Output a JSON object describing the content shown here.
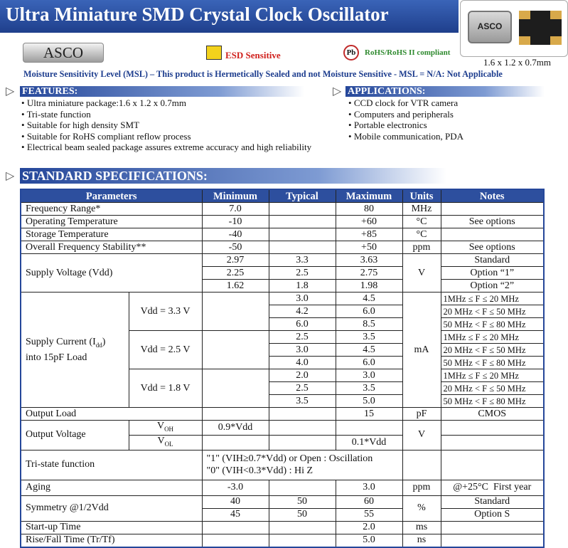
{
  "header": {
    "title": "Ultra Miniature SMD Crystal Clock Oscillator",
    "logo": "ASCO",
    "esd": "ESD Sensitive",
    "pb": "Pb",
    "rohs": "RoHS/RoHS II compliant",
    "chip_label": "ASCO",
    "size": "1.6 x 1.2 x 0.7mm"
  },
  "msl": "Moisture Sensitivity Level (MSL) – This product is Hermetically Sealed and not Moisture Sensitive - MSL = N/A: Not Applicable",
  "features": {
    "title": "FEATURES:",
    "items": [
      "Ultra miniature package:1.6 x 1.2 x 0.7mm",
      "Tri-state function",
      "Suitable for high density SMT",
      "Suitable for RoHS compliant reflow process",
      "Electrical beam sealed package assures extreme accuracy and high reliability"
    ]
  },
  "applications": {
    "title": "APPLICATIONS:",
    "items": [
      "CCD clock for VTR camera",
      "Computers and peripherals",
      "Portable electronics",
      "Mobile communication, PDA"
    ]
  },
  "specs": {
    "title": "STANDARD SPECIFICATIONS:",
    "headers": [
      "Parameters",
      "Minimum",
      "Typical",
      "Maximum",
      "Units",
      "Notes"
    ],
    "rows": [
      {
        "parameter": "Frequency Range*",
        "min": "7.0",
        "max": "80",
        "units": "MHz"
      },
      {
        "parameter": "Operating Temperature",
        "min": "-10",
        "max": "+60",
        "units": "°C",
        "notes": "See options"
      },
      {
        "parameter": "Storage Temperature",
        "min": "-40",
        "max": "+85",
        "units": "°C"
      },
      {
        "parameter": "Overall Frequency Stability**",
        "min": "-50",
        "max": "+50",
        "units": "ppm",
        "notes": "See options"
      },
      {
        "parameter": "Supply Voltage (Vdd)",
        "units": "V",
        "options": [
          {
            "min": "2.97",
            "typ": "3.3",
            "max": "3.63",
            "notes": "Standard"
          },
          {
            "min": "2.25",
            "typ": "2.5",
            "max": "2.75",
            "notes": "Option “1”"
          },
          {
            "min": "1.62",
            "typ": "1.8",
            "max": "1.98",
            "notes": "Option “2”"
          }
        ]
      },
      {
        "parameter": [
          "Supply Current (I",
          "dd",
          ")",
          "into 15pF Load"
        ],
        "units": "mA",
        "groups": [
          {
            "condition": "Vdd = 3.3 V",
            "lines": [
              {
                "typ": "3.0",
                "max": "4.5",
                "notes": "1MHz ≤ F ≤ 20 MHz"
              },
              {
                "typ": "4.2",
                "max": "6.0",
                "notes": "20 MHz < F ≤ 50 MHz"
              },
              {
                "typ": "6.0",
                "max": "8.5",
                "notes": "50 MHz < F ≤ 80 MHz"
              }
            ]
          },
          {
            "condition": "Vdd = 2.5 V",
            "lines": [
              {
                "typ": "2.5",
                "max": "3.5",
                "notes": "1MHz ≤ F ≤ 20 MHz"
              },
              {
                "typ": "3.0",
                "max": "4.5",
                "notes": "20 MHz < F ≤ 50 MHz"
              },
              {
                "typ": "4.0",
                "max": "6.0",
                "notes": "50 MHz < F ≤ 80 MHz"
              }
            ]
          },
          {
            "condition": "Vdd = 1.8 V",
            "lines": [
              {
                "typ": "2.0",
                "max": "3.0",
                "notes": "1MHz ≤ F ≤ 20 MHz"
              },
              {
                "typ": "2.5",
                "max": "3.5",
                "notes": "20 MHz < F ≤ 50 MHz"
              },
              {
                "typ": "3.5",
                "max": "5.0",
                "notes": "50 MHz < F ≤ 80 MHz"
              }
            ]
          }
        ]
      },
      {
        "parameter": "Output Load",
        "max": "15",
        "units": "pF",
        "notes": "CMOS"
      },
      {
        "parameter": "Output Voltage",
        "units": "V",
        "lines": [
          {
            "symbol": "V",
            "sub": "OH",
            "min": "0.9*Vdd"
          },
          {
            "symbol": "V",
            "sub": "OL",
            "max": "0.1*Vdd"
          }
        ]
      },
      {
        "parameter": "Tri-state function",
        "lines": [
          "\"1\" (VIH≥0.7*Vdd) or Open : Oscillation",
          "\"0\" (VIH<0.3*Vdd) : Hi Z"
        ]
      },
      {
        "parameter": "Aging",
        "min": "-3.0",
        "max": "3.0",
        "units": "ppm",
        "notes": "@+25°C  First year"
      },
      {
        "parameter": "Symmetry @1/2Vdd",
        "units": "%",
        "lines": [
          {
            "min": "40",
            "typ": "50",
            "max": "60",
            "notes": "Standard"
          },
          {
            "min": "45",
            "typ": "50",
            "max": "55",
            "notes": "Option S"
          }
        ]
      },
      {
        "parameter": "Start-up Time",
        "max": "2.0",
        "units": "ms"
      },
      {
        "parameter": "Rise/Fall Time (Tr/Tf)",
        "max": "5.0",
        "units": "ns"
      }
    ]
  }
}
